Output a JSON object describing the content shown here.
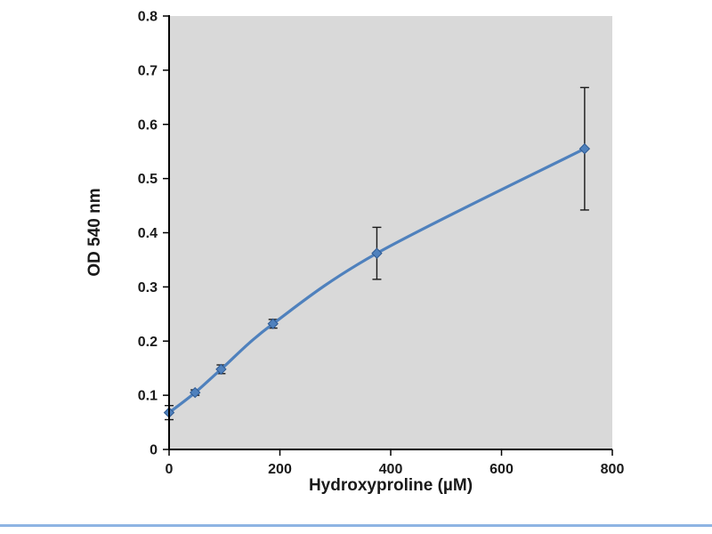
{
  "page": {
    "background": "#ffffff",
    "bottom_rule_color": "#8eb4e3"
  },
  "chart_data": {
    "type": "line",
    "title": "",
    "xlabel": "Hydroxyproline (µM)",
    "ylabel": "OD 540 nm",
    "x": [
      0,
      46.9,
      93.8,
      187.5,
      375,
      750
    ],
    "y": [
      0.068,
      0.105,
      0.148,
      0.232,
      0.362,
      0.555
    ],
    "yerr": [
      0.013,
      0.005,
      0.008,
      0.008,
      0.048,
      0.113
    ],
    "xlim": [
      0,
      800
    ],
    "ylim": [
      0,
      0.8
    ],
    "xticks": [
      0,
      200,
      400,
      600,
      800
    ],
    "yticks": [
      0,
      0.1,
      0.2,
      0.3,
      0.4,
      0.5,
      0.6,
      0.7,
      0.8
    ],
    "grid": false,
    "legend": "none",
    "marker": "diamond",
    "series_color": "#4f81bd",
    "marker_edge_color": "#2f5a92",
    "error_bar_color": "#1a1a1a",
    "plot_bg": "#d9d9d9",
    "axis_color": "#000000",
    "tick_label_color": "#1a1a1a"
  }
}
